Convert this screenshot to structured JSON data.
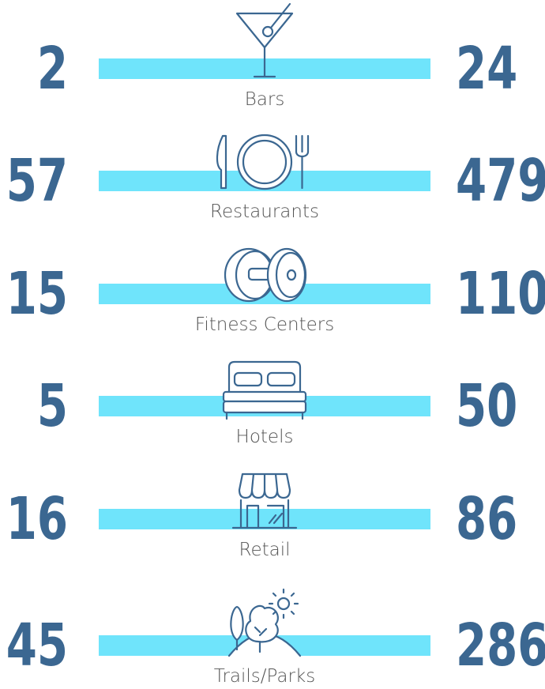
{
  "rows": [
    {
      "label": "Bars",
      "left": 2,
      "right": 24
    },
    {
      "label": "Restaurants",
      "left": 57,
      "right": 479
    },
    {
      "label": "Fitness Centers",
      "left": 15,
      "right": 110
    },
    {
      "label": "Hotels",
      "left": 5,
      "right": 50
    },
    {
      "label": "Retail",
      "left": 16,
      "right": 86
    },
    {
      "label": "Trails/Parks",
      "left": 45,
      "right": 286
    }
  ]
}
